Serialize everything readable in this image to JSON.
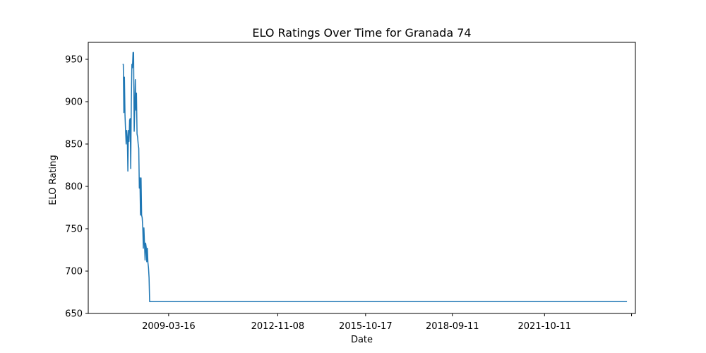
{
  "chart_data": {
    "type": "line",
    "title": "ELO Ratings Over Time for Granada 74",
    "xlabel": "Date",
    "ylabel": "ELO Rating",
    "x_tick_labels": [
      "2009-03-16",
      "2012-11-08",
      "2015-10-17",
      "2018-09-11",
      "2021-10-11",
      ""
    ],
    "x_tick_dates": [
      "2009-03-16",
      "2012-11-08",
      "2015-10-17",
      "2018-09-11",
      "2021-10-11",
      "2024-09-08"
    ],
    "xlim": [
      "2006-07-08",
      "2024-10-25"
    ],
    "y_ticks": [
      650,
      700,
      750,
      800,
      850,
      900,
      950
    ],
    "ylim": [
      650,
      970
    ],
    "grid": false,
    "series_color": "#1f77b4",
    "points": [
      [
        "2007-09-01",
        944
      ],
      [
        "2007-09-09",
        944
      ],
      [
        "2007-09-16",
        887
      ],
      [
        "2007-09-23",
        929
      ],
      [
        "2007-09-30",
        884
      ],
      [
        "2007-10-07",
        866
      ],
      [
        "2007-10-14",
        850
      ],
      [
        "2007-10-21",
        866
      ],
      [
        "2007-10-28",
        858
      ],
      [
        "2007-11-04",
        818
      ],
      [
        "2007-11-11",
        866
      ],
      [
        "2007-11-18",
        853
      ],
      [
        "2007-11-25",
        878
      ],
      [
        "2007-12-02",
        880
      ],
      [
        "2007-12-09",
        821
      ],
      [
        "2007-12-16",
        900
      ],
      [
        "2007-12-23",
        944
      ],
      [
        "2007-12-30",
        940
      ],
      [
        "2008-01-06",
        958
      ],
      [
        "2008-01-13",
        958
      ],
      [
        "2008-01-20",
        865
      ],
      [
        "2008-01-27",
        890
      ],
      [
        "2008-02-03",
        926
      ],
      [
        "2008-02-10",
        890
      ],
      [
        "2008-02-17",
        910
      ],
      [
        "2008-02-24",
        862
      ],
      [
        "2008-03-02",
        858
      ],
      [
        "2008-03-09",
        850
      ],
      [
        "2008-03-16",
        845
      ],
      [
        "2008-03-23",
        798
      ],
      [
        "2008-03-30",
        810
      ],
      [
        "2008-04-06",
        766
      ],
      [
        "2008-04-13",
        810
      ],
      [
        "2008-04-20",
        766
      ],
      [
        "2008-04-27",
        763
      ],
      [
        "2008-05-04",
        751
      ],
      [
        "2008-05-11",
        727
      ],
      [
        "2008-05-18",
        751
      ],
      [
        "2008-05-25",
        733
      ],
      [
        "2008-06-01",
        713
      ],
      [
        "2008-06-08",
        733
      ],
      [
        "2008-06-15",
        728
      ],
      [
        "2008-06-22",
        711
      ],
      [
        "2008-06-29",
        727
      ],
      [
        "2008-07-06",
        710
      ],
      [
        "2008-07-13",
        704
      ],
      [
        "2008-07-20",
        692
      ],
      [
        "2008-07-27",
        664
      ],
      [
        "2024-07-14",
        664
      ]
    ]
  }
}
